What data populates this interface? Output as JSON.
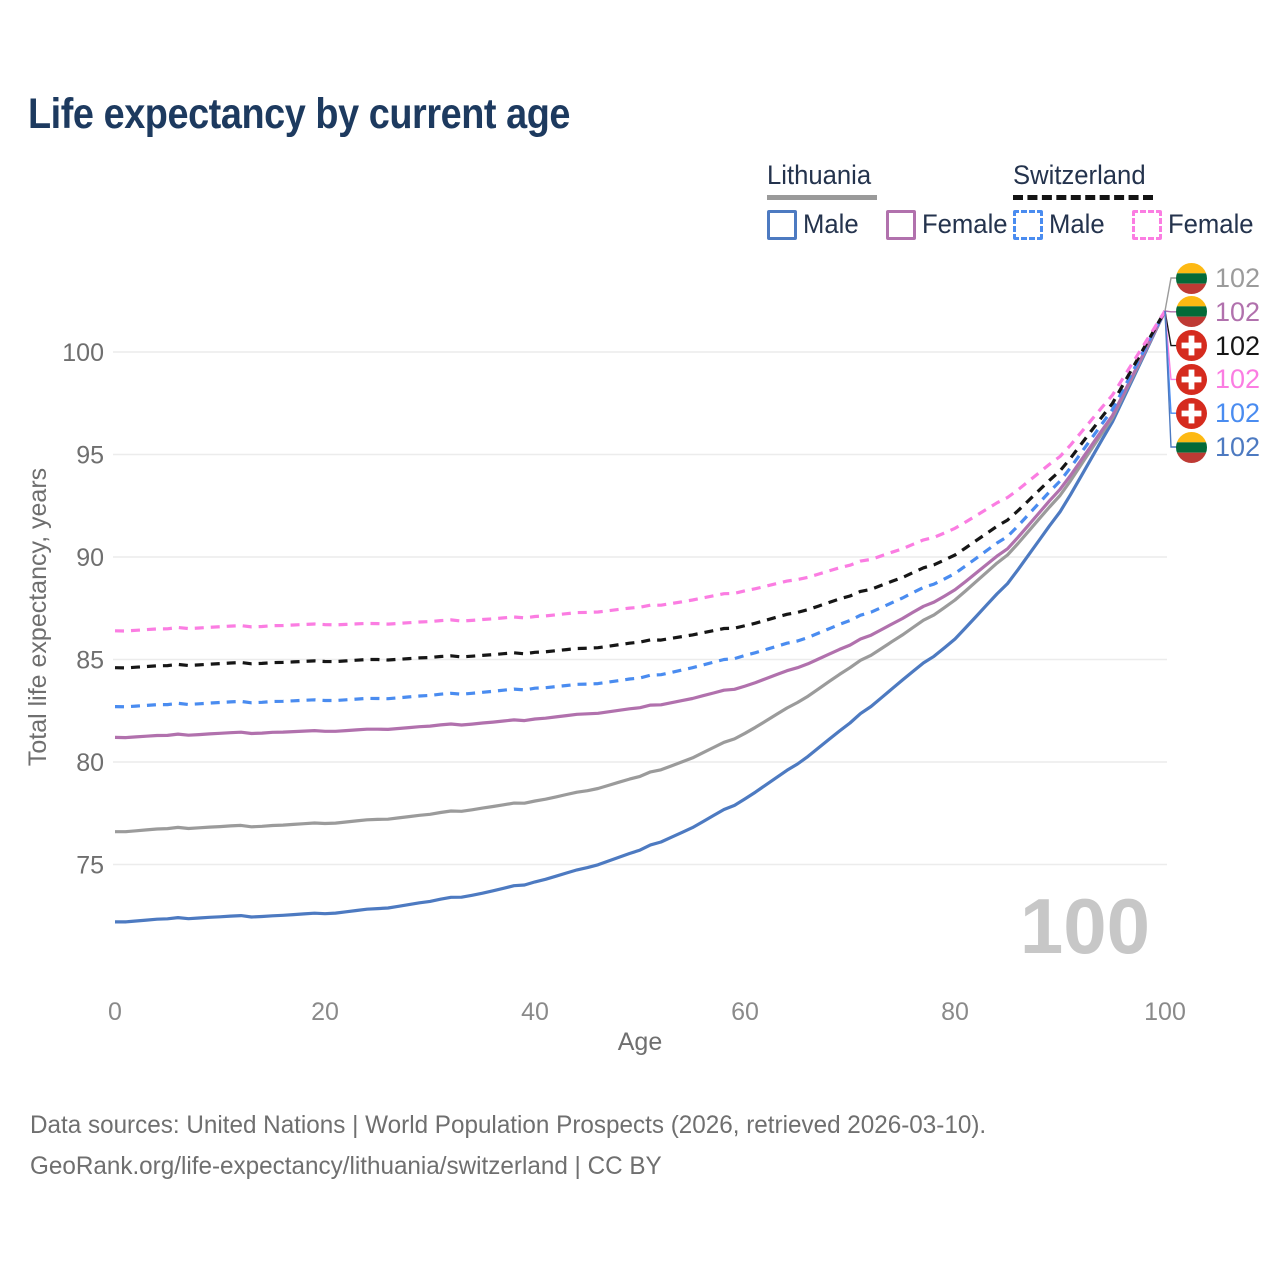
{
  "title": "Life expectancy by current age",
  "legend": {
    "groups": [
      {
        "label": "Lithuania",
        "underline": "solid",
        "underline_color": "#9a9a9a",
        "items": [
          {
            "label": "Male",
            "color": "#4d7ac1",
            "dashed": false
          },
          {
            "label": "Female",
            "color": "#b171ad",
            "dashed": false
          }
        ]
      },
      {
        "label": "Switzerland",
        "underline": "dashed",
        "underline_color": "#141414",
        "items": [
          {
            "label": "Male",
            "color": "#4a8cf0",
            "dashed": true
          },
          {
            "label": "Female",
            "color": "#fb7de2",
            "dashed": true
          }
        ]
      }
    ]
  },
  "chart_data": {
    "type": "line",
    "title": "Life expectancy by current age",
    "xlabel": "Age",
    "ylabel": "Total life expectancy, years",
    "xticks": [
      0,
      20,
      40,
      60,
      80,
      100
    ],
    "yticks": [
      75,
      80,
      85,
      90,
      95,
      100
    ],
    "xlim": [
      0,
      100
    ],
    "ylim": [
      71.5,
      102.5
    ],
    "grid": "horizontal",
    "x": [
      0,
      5,
      10,
      15,
      20,
      25,
      30,
      35,
      40,
      45,
      50,
      55,
      60,
      65,
      70,
      75,
      80,
      85,
      90,
      95,
      100
    ],
    "series": [
      {
        "name": "Lithuania Male",
        "country": "lithuania",
        "sex": "male",
        "color": "#4d7ac1",
        "dash": false,
        "values": [
          72.2,
          72.35,
          72.45,
          72.5,
          72.6,
          72.85,
          73.2,
          73.6,
          74.15,
          74.85,
          75.7,
          76.8,
          78.2,
          79.9,
          81.9,
          84.0,
          86.0,
          88.7,
          92.2,
          96.6,
          102
        ]
      },
      {
        "name": "Lithuania All",
        "country": "lithuania",
        "sex": "all",
        "color": "#9b9b9b",
        "dash": false,
        "values": [
          76.6,
          76.75,
          76.85,
          76.9,
          77.0,
          77.2,
          77.45,
          77.75,
          78.1,
          78.6,
          79.3,
          80.2,
          81.4,
          82.9,
          84.6,
          86.2,
          87.9,
          90.1,
          93.0,
          96.8,
          102
        ]
      },
      {
        "name": "Lithuania Female",
        "country": "lithuania",
        "sex": "female",
        "color": "#b171ad",
        "dash": false,
        "values": [
          81.2,
          81.3,
          81.4,
          81.45,
          81.5,
          81.6,
          81.75,
          81.9,
          82.1,
          82.35,
          82.65,
          83.1,
          83.7,
          84.6,
          85.7,
          87.0,
          88.4,
          90.4,
          93.3,
          96.9,
          102
        ]
      },
      {
        "name": "Switzerland Male",
        "country": "switzerland",
        "sex": "male",
        "color": "#4a8cf0",
        "dash": true,
        "values": [
          82.7,
          82.8,
          82.9,
          82.95,
          83.0,
          83.1,
          83.25,
          83.4,
          83.6,
          83.8,
          84.1,
          84.6,
          85.2,
          85.9,
          86.9,
          88.0,
          89.2,
          91.0,
          93.7,
          97.2,
          102
        ]
      },
      {
        "name": "Switzerland All",
        "country": "switzerland",
        "sex": "all",
        "color": "#161616",
        "dash": true,
        "values": [
          84.6,
          84.7,
          84.8,
          84.85,
          84.9,
          85.0,
          85.1,
          85.2,
          85.35,
          85.55,
          85.85,
          86.2,
          86.65,
          87.3,
          88.1,
          89.0,
          90.1,
          91.8,
          94.2,
          97.5,
          102
        ]
      },
      {
        "name": "Switzerland Female",
        "country": "switzerland",
        "sex": "female",
        "color": "#fb7de2",
        "dash": true,
        "values": [
          86.4,
          86.5,
          86.6,
          86.65,
          86.7,
          86.75,
          86.85,
          86.95,
          87.1,
          87.3,
          87.55,
          87.9,
          88.35,
          88.9,
          89.6,
          90.4,
          91.4,
          92.9,
          94.9,
          97.9,
          102
        ]
      }
    ],
    "end_labels": [
      {
        "flag": "lithuania",
        "value": "102",
        "color": "#9b9b9b"
      },
      {
        "flag": "lithuania",
        "value": "102",
        "color": "#b171ad"
      },
      {
        "flag": "switzerland",
        "value": "102",
        "color": "#161616"
      },
      {
        "flag": "switzerland",
        "value": "102",
        "color": "#fb7de2"
      },
      {
        "flag": "switzerland",
        "value": "102",
        "color": "#4a8cf0"
      },
      {
        "flag": "lithuania",
        "value": "102",
        "color": "#4d7ac1"
      }
    ],
    "watermark": "100",
    "flag_colors": {
      "lithuania": [
        "#FDB913",
        "#046A38",
        "#BE3A34"
      ],
      "switzerland_bg": "#D52B1E",
      "switzerland_cross": "#FFFFFF"
    }
  },
  "footer": {
    "line1": "Data sources: United Nations | World Population Prospects (2026, retrieved 2026-03-10).",
    "line2": "GeoRank.org/life-expectancy/lithuania/switzerland | CC BY"
  }
}
